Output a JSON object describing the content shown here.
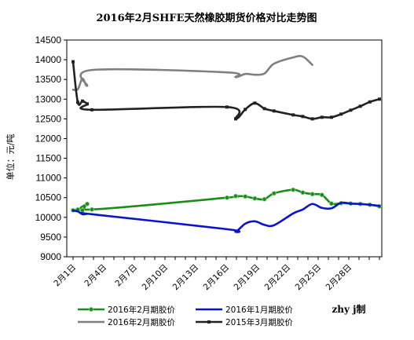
{
  "chart_data": {
    "type": "line",
    "title": "2016年2月SHFE天然橡胶期货价格对比走势图",
    "ylabel": "单位：元/吨",
    "ylim": [
      9000,
      14500
    ],
    "yticks": [
      9000,
      9500,
      10000,
      10500,
      11000,
      11500,
      12000,
      12500,
      13000,
      13500,
      14000,
      14500
    ],
    "xlim": [
      1,
      31
    ],
    "xticks": [
      {
        "x": 1,
        "label": "2月1日"
      },
      {
        "x": 4,
        "label": "2月4日"
      },
      {
        "x": 7,
        "label": "2月7日"
      },
      {
        "x": 10,
        "label": "2月10日"
      },
      {
        "x": 13,
        "label": "2月13日"
      },
      {
        "x": 16,
        "label": "2月16日"
      },
      {
        "x": 19,
        "label": "2月19日"
      },
      {
        "x": 22,
        "label": "2月22日"
      },
      {
        "x": 25,
        "label": "2月25日"
      },
      {
        "x": 28,
        "label": "2月28日"
      }
    ],
    "grid": false,
    "legend_position": "bottom",
    "credit": "zhy j制",
    "series": [
      {
        "name": "2016年2月期胶价",
        "color": "#1a8c1a",
        "marker": true,
        "x": [
          1,
          2,
          3,
          4,
          5,
          15,
          16,
          17,
          18,
          19,
          20,
          22,
          23,
          24,
          25,
          26,
          27,
          28,
          29,
          30,
          31
        ],
        "y": [
          10180,
          10200,
          10180,
          10340,
          10200,
          10500,
          10540,
          10530,
          10480,
          10460,
          10610,
          10700,
          10630,
          10590,
          10570,
          10350,
          10360,
          10350,
          10340,
          10320,
          10280
        ]
      },
      {
        "name": "2016年1月期胶价",
        "color": "#0a14c8",
        "marker": false,
        "x": [
          1,
          2,
          3,
          4,
          5,
          15,
          16,
          17,
          18,
          19,
          20,
          22,
          23,
          24,
          25,
          26,
          27,
          28,
          29,
          30,
          31
        ],
        "y": [
          10170,
          10150,
          10080,
          10090,
          10080,
          9700,
          9640,
          9840,
          9900,
          9810,
          9800,
          10100,
          10200,
          10340,
          10240,
          10230,
          10370,
          10350,
          10340,
          10320,
          10290
        ]
      },
      {
        "name": "2016年2月期胶价",
        "color": "#7f7f7f",
        "marker": false,
        "x": [
          1,
          2,
          3,
          4,
          5,
          15,
          16,
          17,
          18,
          19,
          20,
          22,
          23,
          24
        ],
        "y": [
          13240,
          13250,
          13520,
          13340,
          13740,
          13680,
          13560,
          13640,
          13620,
          13650,
          13900,
          14060,
          14080,
          13870
        ]
      },
      {
        "name": "2015年3月期胶价",
        "color": "#222222",
        "marker": true,
        "x": [
          1,
          2,
          3,
          4,
          5,
          15,
          16,
          17,
          18,
          19,
          20,
          22,
          23,
          24,
          25,
          26,
          27,
          28,
          29,
          30,
          31
        ],
        "y": [
          13950,
          12920,
          12950,
          12880,
          12730,
          12800,
          12500,
          12740,
          12900,
          12760,
          12700,
          12600,
          12560,
          12500,
          12540,
          12540,
          12620,
          12720,
          12820,
          12930,
          13000
        ]
      }
    ],
    "x_spacing_note_free": true
  }
}
